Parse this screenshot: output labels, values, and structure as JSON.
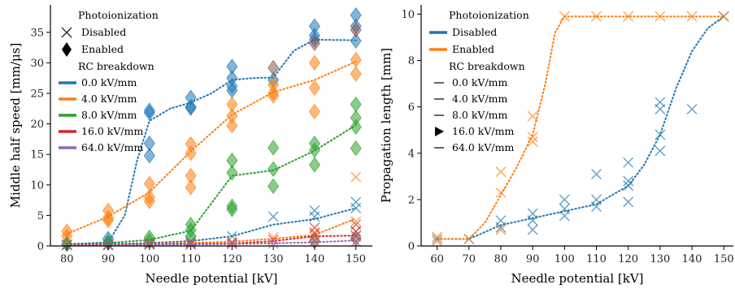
{
  "chart_data": [
    {
      "type": "scatter",
      "xlabel": "Needle potential [kV]",
      "ylabel": "Middle half speed [mm/μs]",
      "xlim": [
        76,
        154
      ],
      "ylim": [
        0,
        39.5
      ],
      "xticks": [
        80,
        90,
        100,
        110,
        120,
        130,
        140,
        150
      ],
      "yticks": [
        0,
        5,
        10,
        15,
        20,
        25,
        30,
        35
      ],
      "legend": {
        "placement": "upper-left",
        "photo_title": "Photoionization",
        "photo_entries": [
          {
            "label": "Disabled",
            "marker": "x"
          },
          {
            "label": "Enabled",
            "marker": "diamond"
          }
        ],
        "rc_title": "RC breakdown",
        "rc_entries": [
          {
            "label": "0.0 kV/mm",
            "color": "#1f77b4"
          },
          {
            "label": "4.0 kV/mm",
            "color": "#ff7f0e"
          },
          {
            "label": "8.0 kV/mm",
            "color": "#2ca02c"
          },
          {
            "label": "16.0 kV/mm",
            "color": "#d62728"
          },
          {
            "label": "64.0 kV/mm",
            "color": "#9467bd"
          }
        ]
      },
      "series": [
        {
          "color": "#1f77b4",
          "marker": "diamond",
          "points": [
            [
              80,
              0.3
            ],
            [
              90,
              0.5
            ],
            [
              90,
              1.2
            ],
            [
              100,
              22.2
            ],
            [
              100,
              21.8
            ],
            [
              100,
              16.8
            ],
            [
              100,
              14.8
            ],
            [
              110,
              24.3
            ],
            [
              110,
              22.8
            ],
            [
              110,
              22.6
            ],
            [
              120,
              29.4
            ],
            [
              120,
              27.5
            ],
            [
              120,
              26.2
            ],
            [
              120,
              25.5
            ],
            [
              130,
              27.2
            ],
            [
              140,
              36.0
            ],
            [
              140,
              34.5
            ],
            [
              140,
              33.8
            ],
            [
              150,
              37.8
            ],
            [
              150,
              36.0
            ],
            [
              150,
              33.6
            ]
          ],
          "fit": [
            [
              80,
              0.3
            ],
            [
              90,
              0.6
            ],
            [
              94,
              5
            ],
            [
              97,
              14
            ],
            [
              100,
              20.5
            ],
            [
              105,
              22.5
            ],
            [
              110,
              23.5
            ],
            [
              115,
              25
            ],
            [
              120,
              27.2
            ],
            [
              125,
              27.5
            ],
            [
              130,
              27.6
            ],
            [
              135,
              32
            ],
            [
              140,
              33.8
            ],
            [
              150,
              33.7
            ]
          ]
        },
        {
          "color": "#ff7f0e",
          "marker": "diamond",
          "points": [
            [
              80,
              2.4
            ],
            [
              80,
              1.6
            ],
            [
              90,
              5.8
            ],
            [
              90,
              4.6
            ],
            [
              90,
              4.2
            ],
            [
              100,
              10.2
            ],
            [
              100,
              8.0
            ],
            [
              100,
              7.3
            ],
            [
              110,
              16.7
            ],
            [
              110,
              15.2
            ],
            [
              110,
              11.5
            ],
            [
              110,
              9.6
            ],
            [
              120,
              23.2
            ],
            [
              120,
              21.3
            ],
            [
              120,
              19.7
            ],
            [
              130,
              26.4
            ],
            [
              130,
              25.1
            ],
            [
              130,
              24.6
            ],
            [
              140,
              30.0
            ],
            [
              140,
              25.9
            ],
            [
              140,
              22.0
            ],
            [
              150,
              30.5
            ],
            [
              150,
              28.2
            ]
          ],
          "fit": [
            [
              80,
              2.0
            ],
            [
              90,
              4.8
            ],
            [
              100,
              8.8
            ],
            [
              110,
              15.5
            ],
            [
              120,
              21.5
            ],
            [
              130,
              25.2
            ],
            [
              140,
              27.2
            ],
            [
              150,
              30.2
            ]
          ]
        },
        {
          "color": "#2ca02c",
          "marker": "diamond",
          "points": [
            [
              80,
              0.3
            ],
            [
              90,
              0.6
            ],
            [
              100,
              1.4
            ],
            [
              100,
              0.8
            ],
            [
              110,
              3.5
            ],
            [
              110,
              2.6
            ],
            [
              110,
              1.6
            ],
            [
              120,
              14.0
            ],
            [
              120,
              12.0
            ],
            [
              120,
              6.5
            ],
            [
              120,
              6.0
            ],
            [
              130,
              16.1
            ],
            [
              130,
              12.6
            ],
            [
              130,
              9.8
            ],
            [
              140,
              16.8
            ],
            [
              140,
              15.7
            ],
            [
              140,
              13.3
            ],
            [
              150,
              23.2
            ],
            [
              150,
              21.0
            ],
            [
              150,
              19.5
            ],
            [
              150,
              16.0
            ]
          ],
          "fit": [
            [
              80,
              0.3
            ],
            [
              90,
              0.5
            ],
            [
              100,
              1.0
            ],
            [
              110,
              2.5
            ],
            [
              115,
              7
            ],
            [
              120,
              11.5
            ],
            [
              130,
              12.4
            ],
            [
              140,
              15.6
            ],
            [
              150,
              19.8
            ]
          ]
        },
        {
          "color": "#1f77b4",
          "marker": "x",
          "points": [
            [
              80,
              0.2
            ],
            [
              90,
              0.2
            ],
            [
              100,
              0.5
            ],
            [
              110,
              0.8
            ],
            [
              120,
              1.6
            ],
            [
              130,
              4.8
            ],
            [
              140,
              5.8
            ],
            [
              140,
              4.8
            ],
            [
              150,
              7.2
            ],
            [
              150,
              6.2
            ]
          ],
          "fit": [
            [
              80,
              0.2
            ],
            [
              90,
              0.3
            ],
            [
              100,
              0.5
            ],
            [
              110,
              0.8
            ],
            [
              120,
              1.6
            ],
            [
              130,
              3.5
            ],
            [
              140,
              4.4
            ],
            [
              150,
              6.2
            ]
          ]
        },
        {
          "color": "#ff7f0e",
          "marker": "x",
          "points": [
            [
              80,
              0.2
            ],
            [
              90,
              0.2
            ],
            [
              100,
              0.4
            ],
            [
              110,
              0.5
            ],
            [
              120,
              0.7
            ],
            [
              130,
              1.4
            ],
            [
              140,
              1.9
            ],
            [
              140,
              1.5
            ],
            [
              150,
              11.3
            ],
            [
              150,
              4.0
            ],
            [
              150,
              2.4
            ]
          ],
          "fit": [
            [
              80,
              0.2
            ],
            [
              90,
              0.2
            ],
            [
              100,
              0.4
            ],
            [
              110,
              0.5
            ],
            [
              120,
              0.7
            ],
            [
              130,
              1.2
            ],
            [
              140,
              1.8
            ],
            [
              150,
              4.5
            ]
          ]
        },
        {
          "color": "#d62728",
          "marker": "x",
          "points": [
            [
              80,
              0.2
            ],
            [
              90,
              0.2
            ],
            [
              100,
              0.3
            ],
            [
              110,
              0.4
            ],
            [
              120,
              0.5
            ],
            [
              130,
              1.0
            ],
            [
              140,
              3.0
            ],
            [
              140,
              2.2
            ],
            [
              150,
              3.5
            ],
            [
              150,
              2.4
            ],
            [
              150,
              1.7
            ]
          ],
          "fit": [
            [
              80,
              0.2
            ],
            [
              100,
              0.3
            ],
            [
              120,
              0.4
            ],
            [
              130,
              0.8
            ],
            [
              140,
              1.6
            ],
            [
              150,
              1.7
            ]
          ]
        },
        {
          "color": "#9467bd",
          "marker": "x",
          "points": [
            [
              80,
              0.1
            ],
            [
              90,
              0.1
            ],
            [
              100,
              0.2
            ],
            [
              110,
              0.2
            ],
            [
              120,
              0.3
            ],
            [
              130,
              0.4
            ],
            [
              140,
              0.8
            ],
            [
              150,
              1.6
            ],
            [
              150,
              0.7
            ]
          ],
          "fit": [
            [
              80,
              0.1
            ],
            [
              100,
              0.2
            ],
            [
              120,
              0.3
            ],
            [
              140,
              0.6
            ],
            [
              150,
              0.9
            ]
          ]
        },
        {
          "color": "#8c564b",
          "marker": "diamond",
          "points": [
            [
              130,
              29.2
            ],
            [
              140,
              33.2
            ],
            [
              150,
              35.4
            ],
            [
              150,
              1.2
            ],
            [
              140,
              0.8
            ]
          ],
          "fit": []
        }
      ]
    },
    {
      "type": "scatter",
      "xlabel": "Needle potential [kV]",
      "ylabel": "Propagation length [mm]",
      "xlim": [
        55,
        153
      ],
      "ylim": [
        0,
        10.4
      ],
      "xticks": [
        60,
        70,
        80,
        90,
        100,
        110,
        120,
        130,
        140,
        150
      ],
      "yticks": [
        0,
        2,
        4,
        6,
        8,
        10
      ],
      "legend": {
        "placement": "upper-left",
        "photo_title": "Photoionization",
        "photo_entries": [
          {
            "label": "Disabled",
            "color": "#1f77b4"
          },
          {
            "label": "Enabled",
            "color": "#ff7f0e"
          }
        ],
        "rc_title": "RC breakdown",
        "rc_entries": [
          {
            "label": "0.0 kV/mm",
            "marker": "line"
          },
          {
            "label": "4.0 kV/mm",
            "marker": "line"
          },
          {
            "label": "8.0 kV/mm",
            "marker": "line"
          },
          {
            "label": "16.0 kV/mm",
            "marker": "triangle"
          },
          {
            "label": "64.0 kV/mm",
            "marker": "line"
          }
        ]
      },
      "series": [
        {
          "color": "#1f77b4",
          "marker": "x",
          "points": [
            [
              60,
              0.3
            ],
            [
              70,
              0.3
            ],
            [
              80,
              1.1
            ],
            [
              80,
              0.8
            ],
            [
              90,
              1.4
            ],
            [
              90,
              1.1
            ],
            [
              90,
              0.7
            ],
            [
              100,
              2.0
            ],
            [
              100,
              1.6
            ],
            [
              100,
              1.3
            ],
            [
              110,
              3.1
            ],
            [
              110,
              2.0
            ],
            [
              110,
              1.7
            ],
            [
              120,
              3.6
            ],
            [
              120,
              2.8
            ],
            [
              120,
              2.6
            ],
            [
              120,
              1.9
            ],
            [
              130,
              6.2
            ],
            [
              130,
              5.9
            ],
            [
              130,
              4.8
            ],
            [
              130,
              4.1
            ],
            [
              140,
              5.9
            ],
            [
              150,
              9.9
            ]
          ],
          "fit": [
            [
              60,
              0.3
            ],
            [
              70,
              0.3
            ],
            [
              80,
              0.9
            ],
            [
              90,
              1.2
            ],
            [
              100,
              1.5
            ],
            [
              110,
              1.8
            ],
            [
              120,
              2.6
            ],
            [
              125,
              3.5
            ],
            [
              130,
              4.8
            ],
            [
              135,
              6.8
            ],
            [
              140,
              8.4
            ],
            [
              145,
              9.4
            ],
            [
              150,
              9.9
            ]
          ]
        },
        {
          "color": "#ff7f0e",
          "marker": "x",
          "points": [
            [
              60,
              0.4
            ],
            [
              60,
              0.2
            ],
            [
              70,
              0.3
            ],
            [
              80,
              3.2
            ],
            [
              80,
              2.3
            ],
            [
              80,
              0.7
            ],
            [
              90,
              5.6
            ],
            [
              90,
              4.7
            ],
            [
              90,
              4.5
            ],
            [
              100,
              9.9
            ],
            [
              110,
              9.9
            ],
            [
              120,
              9.9
            ],
            [
              130,
              9.9
            ],
            [
              140,
              9.9
            ],
            [
              150,
              9.9
            ]
          ],
          "fit": [
            [
              60,
              0.3
            ],
            [
              70,
              0.3
            ],
            [
              75,
              1
            ],
            [
              80,
              2.2
            ],
            [
              85,
              3.4
            ],
            [
              90,
              4.8
            ],
            [
              94,
              7
            ],
            [
              97,
              9.2
            ],
            [
              100,
              9.9
            ],
            [
              110,
              9.9
            ],
            [
              120,
              9.9
            ],
            [
              130,
              9.9
            ],
            [
              140,
              9.9
            ],
            [
              150,
              9.9
            ]
          ]
        }
      ]
    }
  ]
}
